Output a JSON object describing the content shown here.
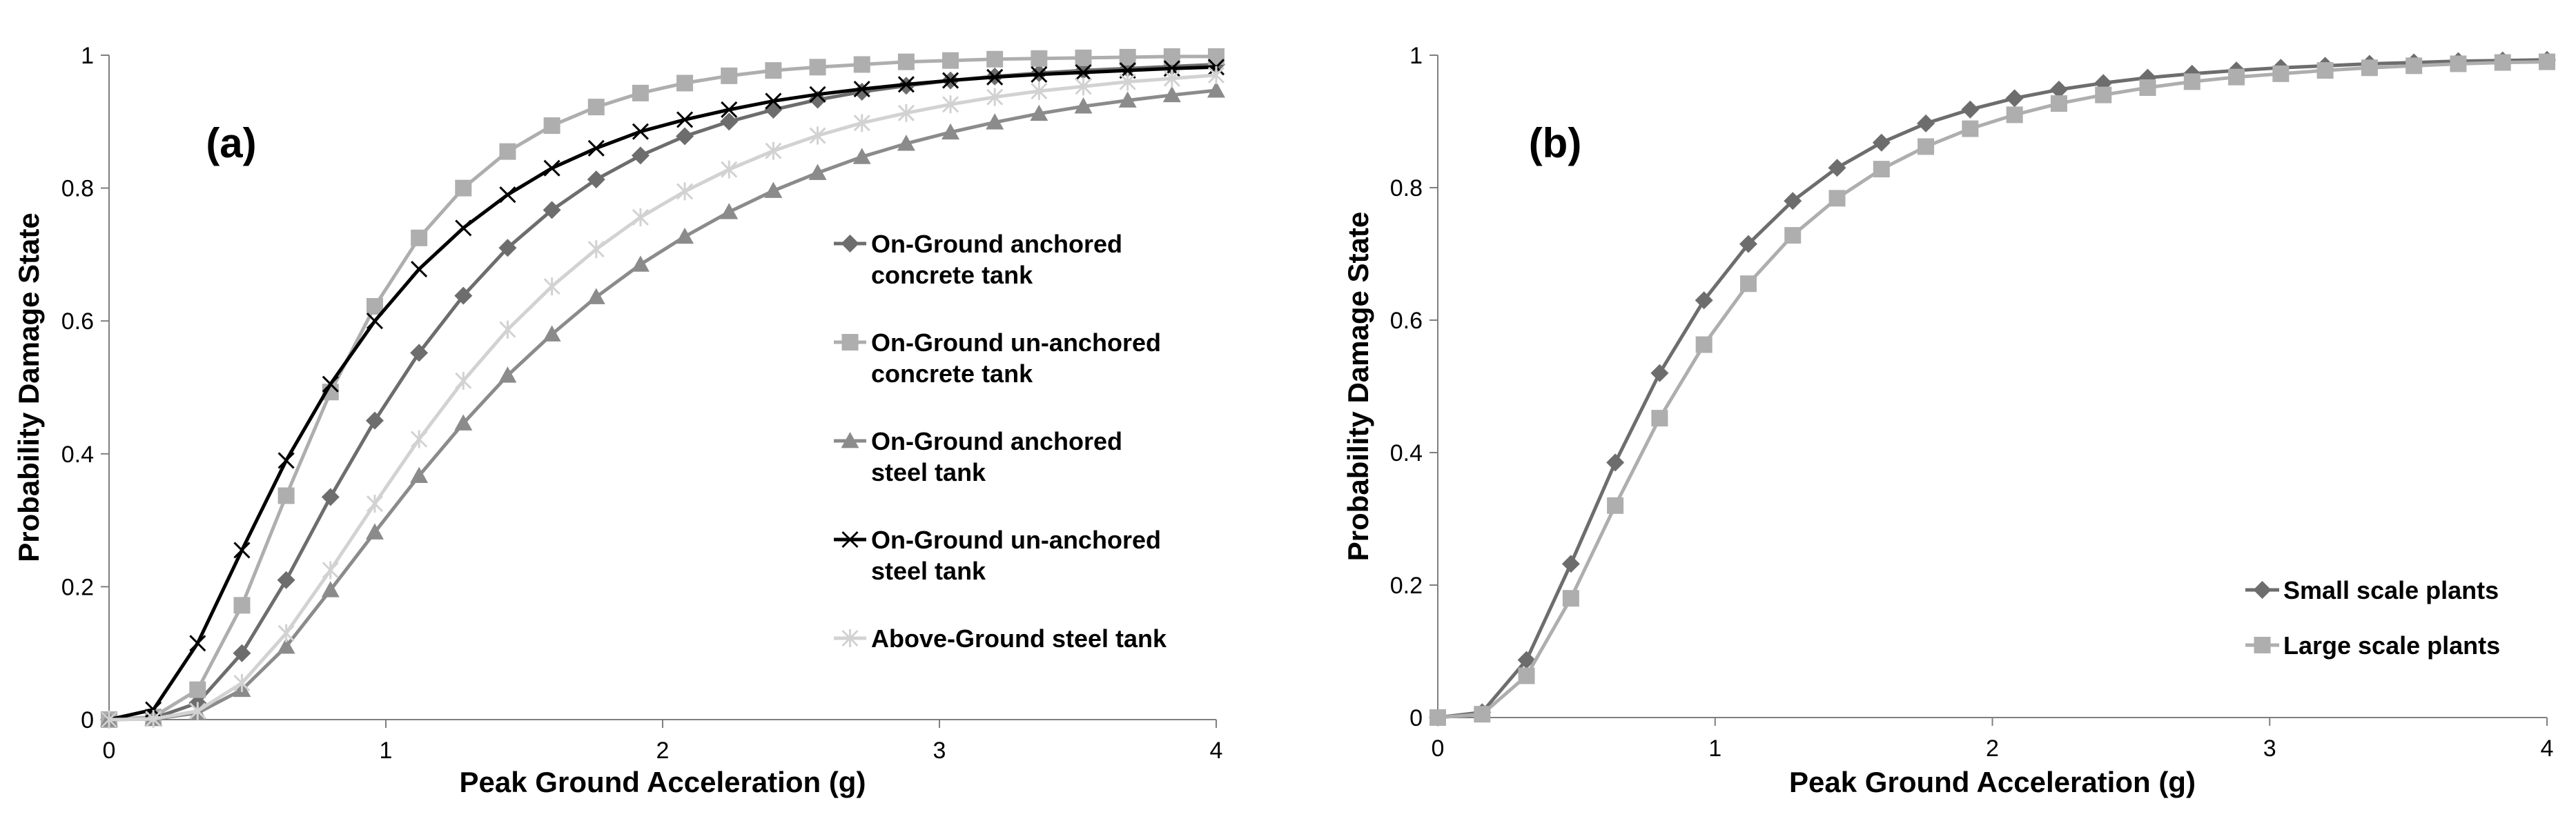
{
  "chart_data": [
    {
      "type": "line",
      "panel_label": "(a)",
      "xlabel": "Peak Ground Acceleration (g)",
      "ylabel": "Probability Damage State",
      "xlim": [
        0,
        4
      ],
      "ylim": [
        0,
        1
      ],
      "xticks": [
        "0",
        "1",
        "2",
        "3",
        "4"
      ],
      "yticks": [
        "0",
        "0.2",
        "0.4",
        "0.6",
        "0.8",
        "1"
      ],
      "grid": false,
      "legend_position": "right",
      "x": [
        0,
        0.16,
        0.32,
        0.48,
        0.64,
        0.8,
        0.96,
        1.12,
        1.28,
        1.44,
        1.6,
        1.76,
        1.92,
        2.08,
        2.24,
        2.4,
        2.56,
        2.72,
        2.88,
        3.04,
        3.2,
        3.36,
        3.52,
        3.68,
        3.84,
        4.0
      ],
      "series": [
        {
          "name": [
            "On-Ground anchored",
            "concrete tank"
          ],
          "color": "#6d6d6d",
          "marker": "diamond",
          "values": [
            0,
            0.002,
            0.025,
            0.1,
            0.21,
            0.335,
            0.45,
            0.552,
            0.638,
            0.71,
            0.767,
            0.813,
            0.849,
            0.878,
            0.9,
            0.918,
            0.933,
            0.945,
            0.954,
            0.962,
            0.968,
            0.973,
            0.977,
            0.98,
            0.983,
            0.986
          ]
        },
        {
          "name": [
            "On-Ground un-anchored",
            "concrete tank"
          ],
          "color": "#aeaeae",
          "marker": "square",
          "values": [
            0,
            0.004,
            0.045,
            0.172,
            0.337,
            0.493,
            0.622,
            0.725,
            0.8,
            0.855,
            0.894,
            0.922,
            0.943,
            0.958,
            0.969,
            0.977,
            0.982,
            0.986,
            0.99,
            0.992,
            0.994,
            0.995,
            0.996,
            0.997,
            0.998,
            0.998
          ]
        },
        {
          "name": [
            "On-Ground anchored",
            "steel tank"
          ],
          "color": "#8b8b8b",
          "marker": "triangle",
          "values": [
            0,
            0.001,
            0.01,
            0.045,
            0.11,
            0.195,
            0.282,
            0.367,
            0.446,
            0.518,
            0.58,
            0.636,
            0.685,
            0.727,
            0.764,
            0.796,
            0.823,
            0.847,
            0.867,
            0.884,
            0.899,
            0.912,
            0.923,
            0.932,
            0.94,
            0.947
          ]
        },
        {
          "name": [
            "On-Ground un-anchored",
            "steel tank"
          ],
          "color": "#000000",
          "marker": "x",
          "values": [
            0,
            0.015,
            0.115,
            0.255,
            0.39,
            0.505,
            0.6,
            0.678,
            0.74,
            0.79,
            0.83,
            0.86,
            0.885,
            0.903,
            0.918,
            0.931,
            0.941,
            0.949,
            0.956,
            0.962,
            0.967,
            0.971,
            0.974,
            0.977,
            0.98,
            0.982
          ]
        },
        {
          "name": [
            "Above-Ground steel tank"
          ],
          "color": "#d2d2d2",
          "marker": "asterisk",
          "values": [
            0,
            0.001,
            0.013,
            0.055,
            0.13,
            0.225,
            0.325,
            0.422,
            0.51,
            0.587,
            0.652,
            0.708,
            0.756,
            0.795,
            0.828,
            0.856,
            0.879,
            0.898,
            0.913,
            0.926,
            0.937,
            0.946,
            0.953,
            0.96,
            0.965,
            0.97
          ]
        }
      ]
    },
    {
      "type": "line",
      "panel_label": "(b)",
      "xlabel": "Peak Ground Acceleration (g)",
      "ylabel": "Probability Damage State",
      "xlim": [
        0,
        4
      ],
      "ylim": [
        0,
        1
      ],
      "xticks": [
        "0",
        "1",
        "2",
        "3",
        "4"
      ],
      "yticks": [
        "0",
        "0.2",
        "0.4",
        "0.6",
        "0.8",
        "1"
      ],
      "grid": false,
      "legend_position": "bottom-right",
      "x": [
        0,
        0.16,
        0.32,
        0.48,
        0.64,
        0.8,
        0.96,
        1.12,
        1.28,
        1.44,
        1.6,
        1.76,
        1.92,
        2.08,
        2.24,
        2.4,
        2.56,
        2.72,
        2.88,
        3.04,
        3.2,
        3.36,
        3.52,
        3.68,
        3.84,
        4.0
      ],
      "series": [
        {
          "name": [
            "Small scale plants"
          ],
          "color": "#6d6d6d",
          "marker": "diamond",
          "values": [
            0,
            0.008,
            0.087,
            0.232,
            0.385,
            0.52,
            0.63,
            0.715,
            0.78,
            0.83,
            0.868,
            0.897,
            0.918,
            0.935,
            0.948,
            0.958,
            0.966,
            0.972,
            0.977,
            0.981,
            0.984,
            0.987,
            0.989,
            0.991,
            0.992,
            0.993
          ]
        },
        {
          "name": [
            "Large scale plants"
          ],
          "color": "#aeaeae",
          "marker": "square",
          "values": [
            0,
            0.005,
            0.063,
            0.18,
            0.32,
            0.452,
            0.563,
            0.655,
            0.728,
            0.784,
            0.828,
            0.862,
            0.889,
            0.91,
            0.927,
            0.94,
            0.951,
            0.96,
            0.967,
            0.972,
            0.977,
            0.981,
            0.984,
            0.987,
            0.989,
            0.99
          ]
        }
      ]
    }
  ]
}
